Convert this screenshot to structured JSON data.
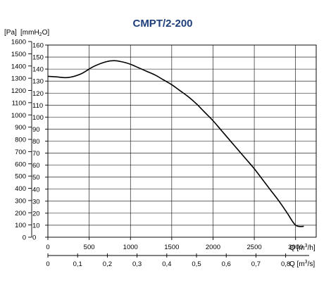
{
  "chart_data": {
    "type": "line",
    "title": "CMPT/2-200",
    "y_outer_label": "[Pa]",
    "y_inner_label": "[mmH2O]",
    "y_inner_label_main": "[mmH",
    "y_inner_label_sub": "2",
    "y_inner_label_end": "O]",
    "y_outer_ticks": [
      0,
      100,
      200,
      300,
      400,
      500,
      600,
      700,
      800,
      900,
      1000,
      1100,
      1200,
      1300,
      1400,
      1500,
      1600
    ],
    "y_outer_tick_labels": [
      "0",
      "100",
      "200",
      "300",
      "400",
      "500",
      "600",
      "700",
      "800",
      "900",
      "1000",
      "1100",
      "1200",
      "1300",
      "1400",
      "1500",
      "1600"
    ],
    "y_inner_ticks": [
      0,
      10,
      20,
      30,
      40,
      50,
      60,
      70,
      80,
      90,
      100,
      110,
      120,
      130,
      140,
      150,
      160
    ],
    "y_inner_tick_labels": [
      "0",
      "10",
      "20",
      "30",
      "40",
      "50",
      "60",
      "70",
      "80",
      "90",
      "100",
      "110",
      "120",
      "130",
      "140",
      "150",
      "160"
    ],
    "ylim_mmH2O": [
      0,
      160
    ],
    "x_top_label": "Q [m³/h]",
    "x_top_label_main": "Q [m",
    "x_top_label_sup": "3",
    "x_top_label_end": "/h]",
    "x_top_ticks": [
      0,
      500,
      1000,
      1500,
      2000,
      2500,
      3000
    ],
    "x_top_tick_labels": [
      "0",
      "500",
      "1000",
      "1500",
      "2000",
      "2500",
      "3000"
    ],
    "x_bottom_label": "Q [m³/s]",
    "x_bottom_label_main": "Q [m",
    "x_bottom_label_sup": "3",
    "x_bottom_label_end": "/s]",
    "x_bottom_ticks": [
      0,
      0.1,
      0.2,
      0.3,
      0.4,
      0.5,
      0.6,
      0.7,
      0.8
    ],
    "x_bottom_tick_labels": [
      "0",
      "0,1",
      "0,2",
      "0,3",
      "0,4",
      "0,5",
      "0,6",
      "0,7",
      "0,8"
    ],
    "xlim_m3h": [
      0,
      3250
    ],
    "grid": true,
    "series": [
      {
        "x": [
          0,
          100,
          250,
          400,
          550,
          700,
          800,
          900,
          1000,
          1100,
          1200,
          1300,
          1400,
          1500,
          1600,
          1700,
          1800,
          1900,
          2000,
          2100,
          2200,
          2300,
          2400,
          2500,
          2600,
          2700,
          2800,
          2900,
          3000,
          3100
        ],
        "y": [
          134,
          133.5,
          133,
          136,
          142,
          146,
          147,
          146,
          144,
          141,
          138,
          135,
          131,
          127,
          122,
          117,
          111,
          104,
          97,
          89,
          81,
          73,
          65,
          57,
          48,
          39,
          30,
          20,
          10,
          9
        ]
      }
    ]
  }
}
